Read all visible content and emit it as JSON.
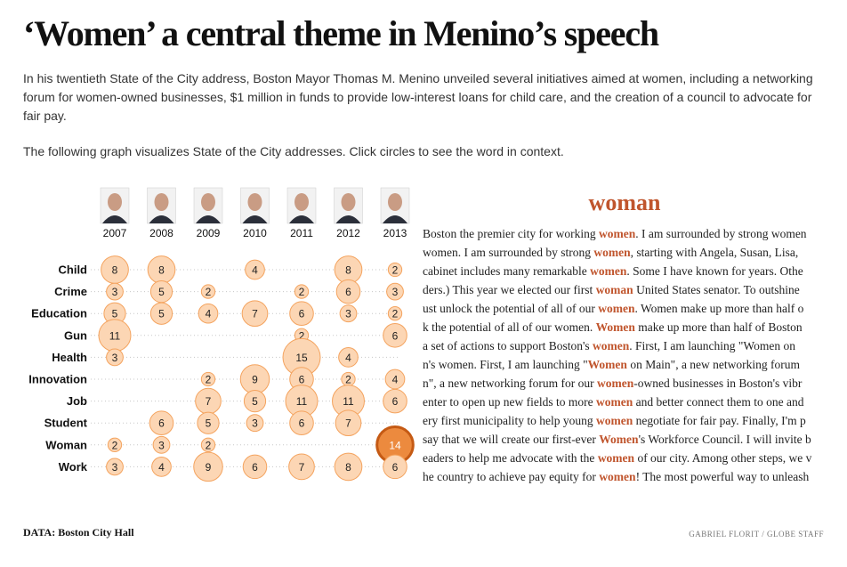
{
  "header": {
    "headline": "‘Women’ a central theme in Menino’s speech",
    "intro": "In his twentieth State of the City address, Boston Mayor Thomas M. Menino unveiled several initiatives aimed at women, including a networking forum for women-owned businesses, $1 million in funds to provide low-interest loans for child care, and the creation of a council to advocate for fair pay.",
    "instructions": "The following graph visualizes State of the City addresses. Click circles to see the word in context."
  },
  "chart_data": {
    "type": "bubble-grid",
    "columns": [
      "2007",
      "2008",
      "2009",
      "2010",
      "2011",
      "2012",
      "2013"
    ],
    "rows": [
      {
        "label": "Child",
        "values": [
          8,
          8,
          null,
          4,
          null,
          8,
          2
        ]
      },
      {
        "label": "Crime",
        "values": [
          3,
          5,
          2,
          null,
          2,
          6,
          3
        ]
      },
      {
        "label": "Education",
        "values": [
          5,
          5,
          4,
          7,
          6,
          3,
          2
        ]
      },
      {
        "label": "Gun",
        "values": [
          11,
          null,
          null,
          null,
          2,
          null,
          6
        ]
      },
      {
        "label": "Health",
        "values": [
          3,
          null,
          null,
          null,
          15,
          4,
          null
        ]
      },
      {
        "label": "Innovation",
        "values": [
          null,
          null,
          2,
          9,
          6,
          2,
          4
        ]
      },
      {
        "label": "Job",
        "values": [
          null,
          null,
          7,
          5,
          11,
          11,
          6
        ]
      },
      {
        "label": "Student",
        "values": [
          null,
          6,
          5,
          3,
          6,
          7,
          null
        ]
      },
      {
        "label": "Woman",
        "values": [
          2,
          3,
          2,
          null,
          null,
          null,
          14
        ]
      },
      {
        "label": "Work",
        "values": [
          3,
          4,
          9,
          6,
          7,
          8,
          6
        ]
      }
    ],
    "selected": {
      "row": "Woman",
      "column": "2013",
      "value": 14
    },
    "max_value": 15
  },
  "context": {
    "title": "woman",
    "lines": [
      [
        "Boston the premier city for working ",
        "women",
        ". I am surrounded by strong women"
      ],
      [
        "women. I am surrounded by strong ",
        "women",
        ", starting with Angela, Susan, Lisa,"
      ],
      [
        "cabinet includes many remarkable ",
        "women",
        ". Some I have known for years. Othe"
      ],
      [
        "ders.) This year we elected our first ",
        "woman",
        " United States senator. To outshine"
      ],
      [
        "ust unlock the potential of all of our ",
        "women",
        ". Women make up more than half o"
      ],
      [
        "k the potential of all of our women. ",
        "Women",
        " make up more than half of Boston"
      ],
      [
        "a set of actions to support Boston's ",
        "women",
        ". First, I am launching \"Women on"
      ],
      [
        "n's women. First, I am launching \"",
        "Women",
        " on Main\", a new networking forum"
      ],
      [
        "n\", a new networking forum for our ",
        "women",
        "-owned businesses in Boston's vibr"
      ],
      [
        "enter to open up new fields to more ",
        "women",
        " and better connect them to one and"
      ],
      [
        "ery first municipality to help young ",
        "women",
        " negotiate for fair pay. Finally, I'm p"
      ],
      [
        "say that we will create our first-ever ",
        "Women",
        "'s Workforce Council. I will invite b"
      ],
      [
        "eaders to help me advocate with the ",
        "women",
        " of our city. Among other steps, we v"
      ],
      [
        "he country to achieve pay equity for ",
        "women",
        "! The most powerful way to unleash"
      ]
    ]
  },
  "footer": {
    "data_credit": "DATA: Boston City Hall",
    "author_credit": "GABRIEL FLORIT / GLOBE STAFF"
  },
  "colors": {
    "bubble_fill": "#fcd6b4",
    "bubble_stroke": "#f4a35e",
    "selected_fill": "#ec8a3e",
    "selected_stroke": "#c55a14",
    "highlight_text": "#c0552d"
  },
  "portrait_icon": "portrait-icon"
}
